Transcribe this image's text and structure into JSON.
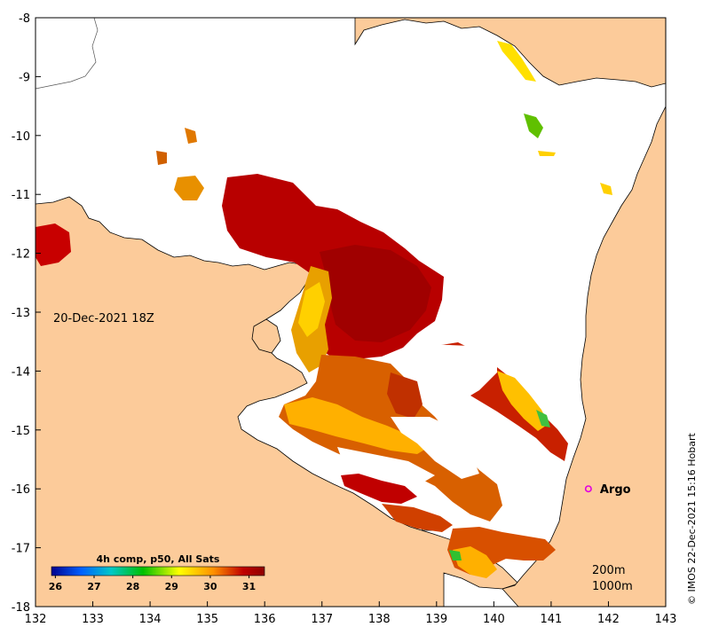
{
  "map": {
    "date_label": "20-Dec-2021 18Z",
    "credit": "© IMOS 22-Dec-2021 15:16 Hobart",
    "x_ticks": [
      "132",
      "133",
      "134",
      "135",
      "136",
      "137",
      "138",
      "139",
      "140",
      "141",
      "142",
      "143"
    ],
    "y_ticks": [
      "-8",
      "-9",
      "-10",
      "-11",
      "-12",
      "-13",
      "-14",
      "-15",
      "-16",
      "-17",
      "-18"
    ],
    "lon_range": [
      132,
      143
    ],
    "lat_range": [
      -18,
      -8
    ],
    "argo": {
      "label": "Argo",
      "lon": 141.65,
      "lat": -16.0,
      "color": "#e000e0"
    },
    "contours": {
      "line1": "200m",
      "line2": "1000m"
    },
    "colors": {
      "land": "#fccb9a",
      "ocean": "#ffffff"
    }
  },
  "colorbar": {
    "title": "4h comp, p50, All Sats",
    "ticks": [
      "26",
      "27",
      "28",
      "29",
      "30",
      "31"
    ],
    "range": [
      25.9,
      31.4
    ],
    "colors": [
      "#00008f",
      "#0060ff",
      "#00c8c8",
      "#00c000",
      "#ffff00",
      "#ff9000",
      "#c00000",
      "#8f0000"
    ]
  }
}
